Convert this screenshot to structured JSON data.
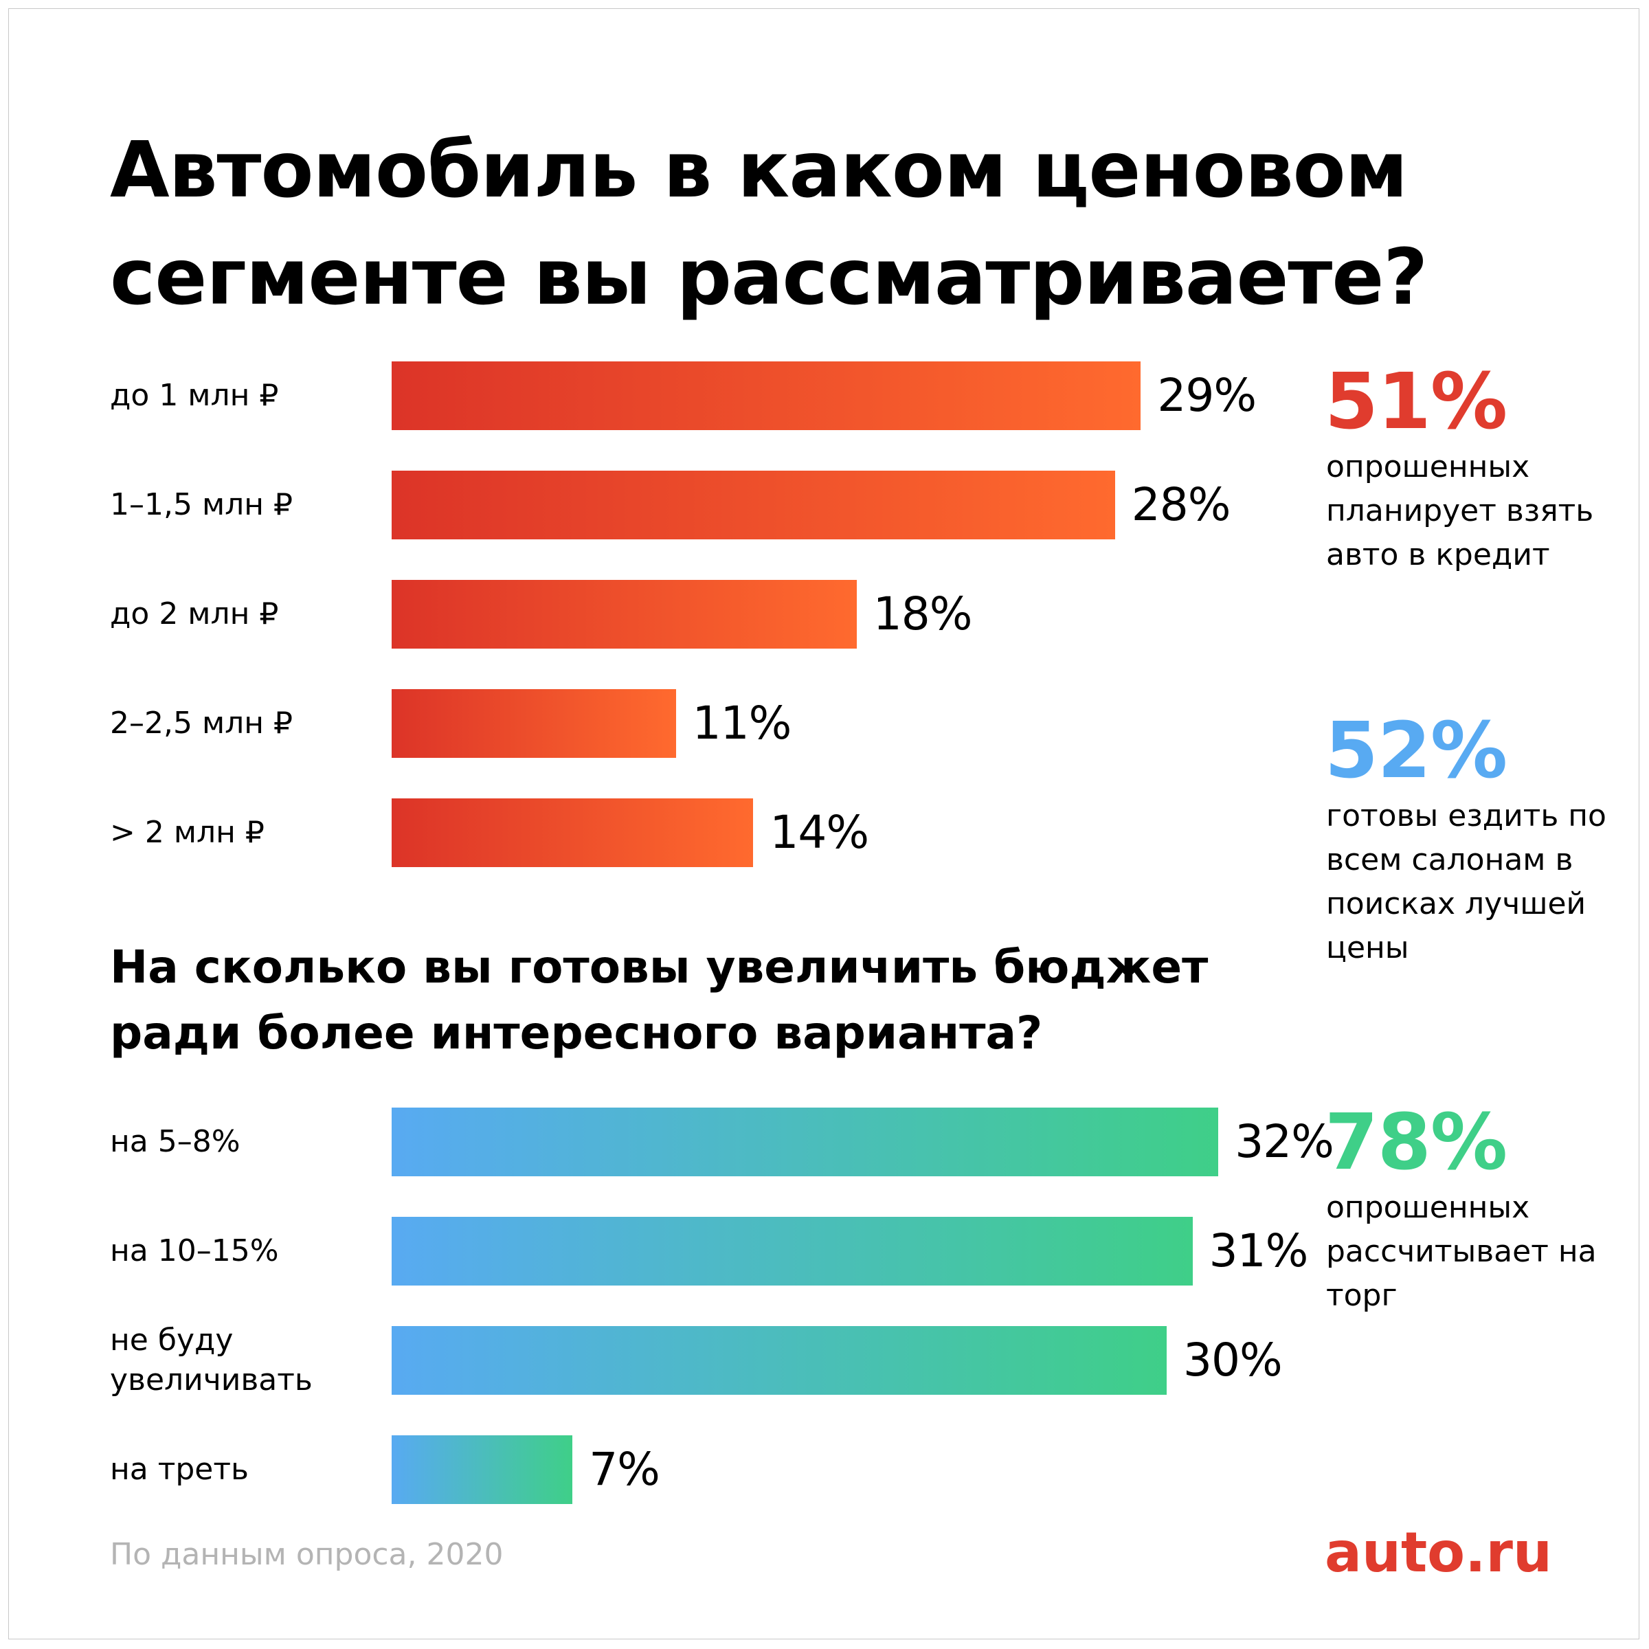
{
  "title": "Автомобиль в каком ценовом сегменте вы рассматриваете?",
  "subtitle": "На сколько вы готовы увеличить бюджет ради более интересного варианта?",
  "colors": {
    "red_start": "#dc3428",
    "red_end": "#ff6a2e",
    "blue_start": "#58aaf2",
    "green_end": "#3fcf88",
    "stat_red": "#e03c2e",
    "stat_blue": "#58aaf2",
    "stat_green": "#3fcf88",
    "logo": "#e03c2e"
  },
  "chart_data": [
    {
      "type": "bar",
      "orientation": "horizontal",
      "title": "Автомобиль в каком ценовом сегменте вы рассматриваете?",
      "categories": [
        "до 1 млн ₽",
        "1–1,5 млн ₽",
        "до 2 млн ₽",
        "2–2,5 млн ₽",
        "> 2 млн ₽"
      ],
      "values": [
        29,
        28,
        18,
        11,
        14
      ],
      "value_labels": [
        "29%",
        "28%",
        "18%",
        "11%",
        "14%"
      ],
      "xlim": [
        0,
        100
      ],
      "grid": false
    },
    {
      "type": "bar",
      "orientation": "horizontal",
      "title": "На сколько вы готовы увеличить бюджет ради более интересного варианта?",
      "categories": [
        "на 5–8%",
        "на 10–15%",
        "не буду увеличивать",
        "на треть"
      ],
      "values": [
        32,
        31,
        30,
        7
      ],
      "value_labels": [
        "32%",
        "31%",
        "30%",
        "7%"
      ],
      "xlim": [
        0,
        100
      ],
      "grid": false
    }
  ],
  "stats": [
    {
      "value": "51%",
      "text": "опрошенных планирует взять авто в кредит"
    },
    {
      "value": "52%",
      "text": "готовы ездить по всем салонам в поисках лучшей цены"
    },
    {
      "value": "78%",
      "text": "опрошенных рассчитывает на торг"
    }
  ],
  "source": "По данным опроса, 2020",
  "logo": "auto.ru"
}
